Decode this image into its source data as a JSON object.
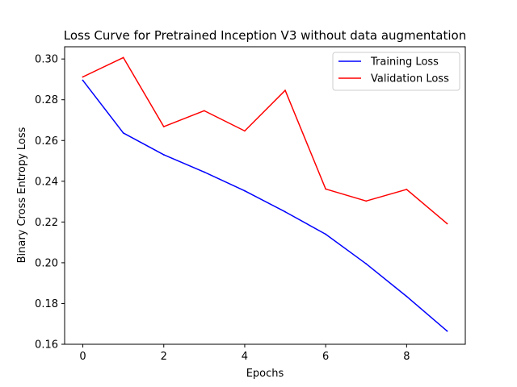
{
  "chart_data": {
    "type": "line",
    "title": "Loss Curve for Pretrained Inception V3 without data augmentation",
    "xlabel": "Epochs",
    "ylabel": "Binary Cross Entropy Loss",
    "x": [
      0,
      1,
      2,
      3,
      4,
      5,
      6,
      7,
      8,
      9
    ],
    "series": [
      {
        "name": "Training Loss",
        "color": "#0000ff",
        "values": [
          0.2895,
          0.2637,
          0.253,
          0.2445,
          0.2353,
          0.225,
          0.214,
          0.1995,
          0.1835,
          0.1665
        ]
      },
      {
        "name": "Validation Loss",
        "color": "#ff0000",
        "values": [
          0.2912,
          0.3007,
          0.2668,
          0.2746,
          0.2647,
          0.2846,
          0.2362,
          0.2303,
          0.236,
          0.2192
        ]
      }
    ],
    "xlim": [
      -0.45,
      9.45
    ],
    "ylim": [
      0.16,
      0.306
    ],
    "xticks": [
      0,
      2,
      4,
      6,
      8
    ],
    "yticks": [
      0.16,
      0.18,
      0.2,
      0.22,
      0.24,
      0.26,
      0.28,
      0.3
    ],
    "xtick_labels": [
      "0",
      "2",
      "4",
      "6",
      "8"
    ],
    "ytick_labels": [
      "0.16",
      "0.18",
      "0.20",
      "0.22",
      "0.24",
      "0.26",
      "0.28",
      "0.30"
    ],
    "grid": false,
    "legend_position": "top-right"
  }
}
